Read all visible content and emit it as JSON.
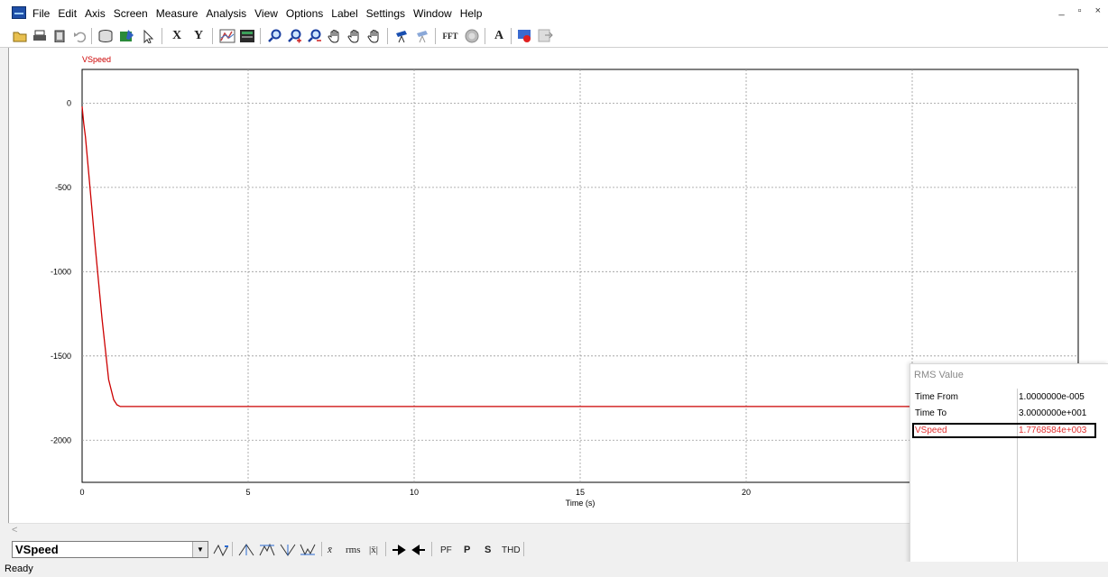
{
  "menu": {
    "items": [
      "File",
      "Edit",
      "Axis",
      "Screen",
      "Measure",
      "Analysis",
      "View",
      "Options",
      "Label",
      "Settings",
      "Window",
      "Help"
    ],
    "window_controls": "_ ▫ ×"
  },
  "toolbar": {
    "x_label": "X",
    "y_label": "Y",
    "fft_label": "FFT",
    "a_label": "A"
  },
  "plot": {
    "trace_label": "VSpeed",
    "trace_color": "#cc0000",
    "xlabel": "Time (s)"
  },
  "chart_data": {
    "type": "line",
    "title": "",
    "series": [
      {
        "name": "VSpeed",
        "color": "#cc0000",
        "x": [
          0,
          0.05,
          0.1,
          0.2,
          0.4,
          0.6,
          0.8,
          0.95,
          1.05,
          1.15,
          1.25,
          2,
          5,
          10,
          15,
          20,
          25,
          30
        ],
        "y": [
          -20,
          -120,
          -200,
          -420,
          -860,
          -1280,
          -1640,
          -1760,
          -1790,
          -1800,
          -1800,
          -1800,
          -1800,
          -1800,
          -1800,
          -1800,
          -1800,
          -1800
        ]
      }
    ],
    "xlabel": "Time (s)",
    "ylabel": "",
    "xlim": [
      0,
      30
    ],
    "ylim": [
      -2250,
      200
    ],
    "x_ticks": [
      "0",
      "5",
      "10",
      "15",
      "20",
      "2"
    ],
    "y_ticks": [
      "0",
      "-500",
      "-1000",
      "-1500",
      "-2000"
    ],
    "grid": true
  },
  "rms_panel": {
    "title": "RMS Value",
    "rows": [
      {
        "label": "Time  From",
        "value": "1.0000000e-005"
      },
      {
        "label": "Time  To",
        "value": "3.0000000e+001"
      },
      {
        "label": "VSpeed",
        "value": "1.7768584e+003"
      }
    ]
  },
  "bottom_toolbar": {
    "selected_signal": "VSpeed",
    "buttons": [
      "x̄",
      "rms",
      "|x̄|",
      "PF",
      "P",
      "S",
      "THD"
    ]
  },
  "statusbar": {
    "text": "Ready"
  }
}
